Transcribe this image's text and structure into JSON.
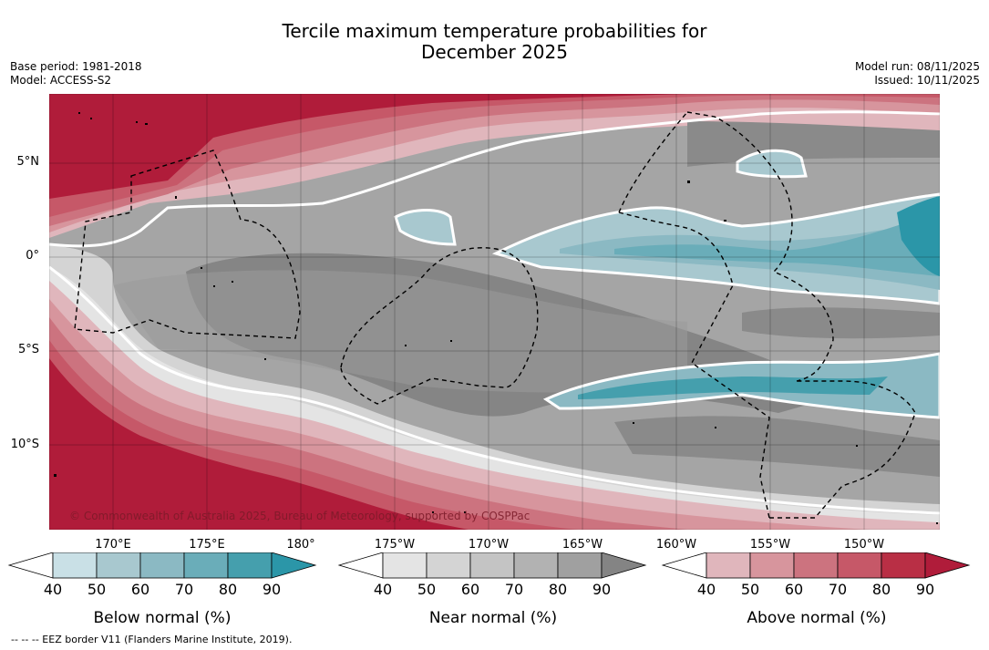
{
  "header": {
    "title_line1": "Tercile maximum temperature probabilities for",
    "title_line2": "December 2025",
    "base_period": "Base period: 1981-2018",
    "model": "Model: ACCESS-S2",
    "model_run": "Model run: 08/11/2025",
    "issued": "Issued: 10/11/2025"
  },
  "map": {
    "copyright": "© Commonwealth of Australia 2025, Bureau of Meteorology, supported by COSPPac",
    "lat_labels": [
      "5°N",
      "0°",
      "5°S",
      "10°S"
    ],
    "lon_labels": [
      "170°E",
      "175°E",
      "180°",
      "175°W",
      "170°W",
      "165°W",
      "160°W",
      "155°W",
      "150°W"
    ]
  },
  "colorbars": [
    {
      "title": "Below normal (%)",
      "ticks": [
        "40",
        "50",
        "60",
        "70",
        "80",
        "90"
      ],
      "colors": [
        "#ffffff",
        "#c9e0e6",
        "#a8c8cf",
        "#8bb9c3",
        "#6aadb9",
        "#459fad",
        "#2b96a8"
      ]
    },
    {
      "title": "Near normal (%)",
      "ticks": [
        "40",
        "50",
        "60",
        "70",
        "80",
        "90"
      ],
      "colors": [
        "#ffffff",
        "#e4e4e4",
        "#d4d4d4",
        "#c4c4c4",
        "#b2b2b2",
        "#a0a0a0",
        "#848484"
      ]
    },
    {
      "title": "Above normal (%)",
      "ticks": [
        "40",
        "50",
        "60",
        "70",
        "80",
        "90"
      ],
      "colors": [
        "#ffffff",
        "#e0b6bc",
        "#d7959d",
        "#cc737f",
        "#c65868",
        "#b92f45",
        "#b01c3a"
      ]
    }
  ],
  "footer": {
    "legend": "--  --  -- EEZ border V11 (Flanders Marine Institute, 2019)."
  }
}
